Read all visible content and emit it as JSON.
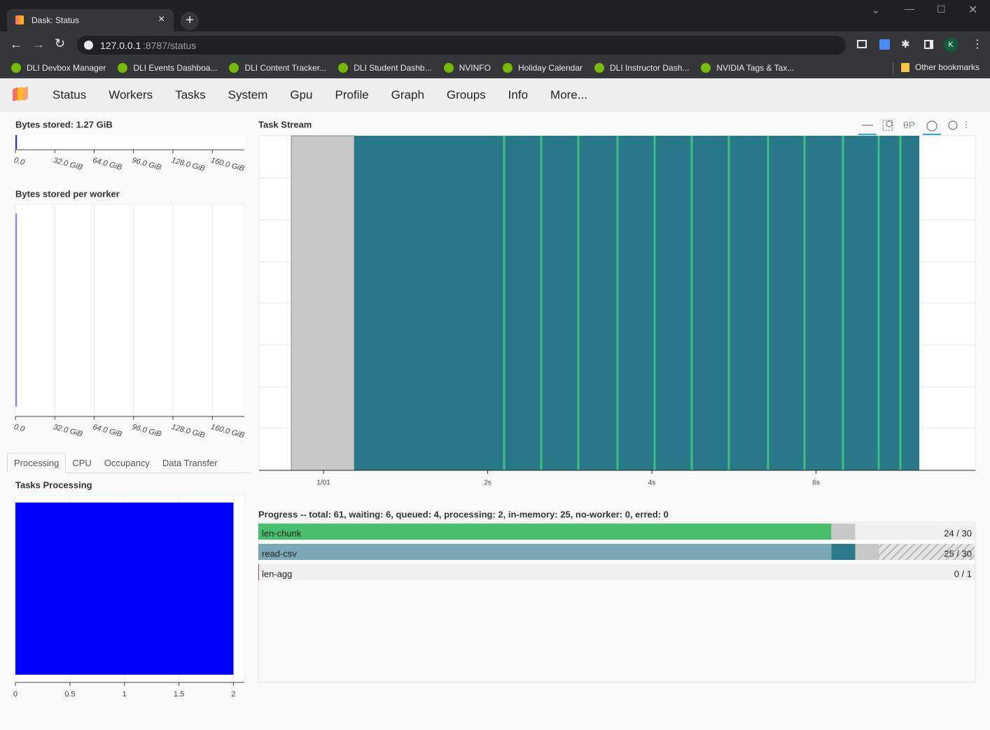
{
  "browser": {
    "tab_title": "Dask: Status",
    "url_host": "127.0.0.1",
    "url_path": ":8787/status",
    "profile_initial": "K",
    "bookmarks": [
      "DLI Devbox Manager",
      "DLI Events Dashboa...",
      "DLI Content Tracker...",
      "DLI Student Dashb...",
      "NVINFO",
      "Holiday Calendar",
      "DLI Instructor Dash...",
      "NVIDIA Tags & Tax..."
    ],
    "other_bookmarks": "Other bookmarks"
  },
  "nav": [
    "Status",
    "Workers",
    "Tasks",
    "System",
    "Gpu",
    "Profile",
    "Graph",
    "Groups",
    "Info",
    "More..."
  ],
  "bytes_stored": {
    "title": "Bytes stored: 1.27 GiB",
    "value": 1.27,
    "color": "#2a2ad8",
    "xlim": [
      0,
      186
    ],
    "xticks": [
      {
        "value": 0,
        "label": "0.0"
      },
      {
        "value": 32,
        "label": "32.0 GiB"
      },
      {
        "value": 64,
        "label": "64.0 GiB"
      },
      {
        "value": 96,
        "label": "96.0 GiB"
      },
      {
        "value": 128,
        "label": "128.0 GiB"
      },
      {
        "value": 160,
        "label": "160.0 GiB"
      }
    ]
  },
  "bytes_per_worker": {
    "title": "Bytes stored per worker",
    "values": [
      1.27
    ],
    "color": "#8a80f0",
    "xlim": [
      0,
      186
    ],
    "xticks": [
      {
        "value": 0,
        "label": "0.0"
      },
      {
        "value": 32,
        "label": "32.0 GiB"
      },
      {
        "value": 64,
        "label": "64.0 GiB"
      },
      {
        "value": 96,
        "label": "96.0 GiB"
      },
      {
        "value": 128,
        "label": "128.0 GiB"
      },
      {
        "value": 160,
        "label": "160.0 GiB"
      }
    ]
  },
  "tabs": [
    "Processing",
    "CPU",
    "Occupancy",
    "Data Transfer"
  ],
  "tasks_processing": {
    "title": "Tasks Processing",
    "values": [
      2
    ],
    "color": "#0000ff",
    "xlim": [
      0,
      2.1
    ],
    "xticks": [
      0,
      0.5,
      1,
      1.5,
      2
    ]
  },
  "task_stream": {
    "title": "Task Stream",
    "xlim": [
      -0.785,
      7.94
    ],
    "xticks": [
      {
        "value": 0,
        "label": "1/01"
      },
      {
        "value": 2,
        "label": "2s"
      },
      {
        "value": 4,
        "label": "4s"
      },
      {
        "value": 6,
        "label": "6s"
      }
    ]
  },
  "progress": {
    "title": "Progress -- total: 61, waiting: 6, queued: 4, processing: 2, in-memory: 25, no-worker: 0, erred: 0",
    "rows": [
      {
        "name": "len-chunk",
        "label": "24 / 30",
        "total": 30,
        "segments": [
          {
            "value": 24,
            "color": "#48bf6d"
          },
          {
            "value": 1,
            "color": "#c8c8c8"
          }
        ]
      },
      {
        "name": "read-csv",
        "label": "25 / 30",
        "total": 30,
        "segments": [
          {
            "value": 24,
            "color": "#7aa9b5"
          },
          {
            "value": 1,
            "color": "#2b7a8c"
          },
          {
            "value": 1,
            "color": "#c8c8c8"
          },
          {
            "value": 4,
            "color": "#d2d2d2",
            "hatched": true
          }
        ]
      },
      {
        "name": "len-agg",
        "label": "0 / 1",
        "total": 1,
        "segments": []
      }
    ]
  }
}
